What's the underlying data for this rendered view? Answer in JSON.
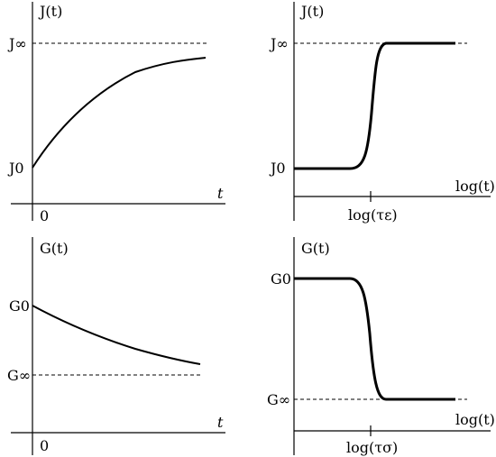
{
  "chart_data": [
    {
      "type": "line",
      "ylabel": "J(t)",
      "xlabel": "t",
      "x_tick_label": "0",
      "y_tick_labels": [
        "J∞",
        "J0"
      ],
      "asymptote_label": "J∞",
      "x": [
        0,
        0.5,
        1,
        1.5,
        2,
        2.5,
        3,
        3.5,
        4,
        4.5,
        5
      ],
      "y": [
        0.0,
        0.26,
        0.45,
        0.6,
        0.7,
        0.78,
        0.84,
        0.88,
        0.91,
        0.93,
        0.95
      ],
      "y_range": "J0 to J∞"
    },
    {
      "type": "line",
      "ylabel": "J(t)",
      "xlabel": "log(t)",
      "x_tick_label": "log(τε)",
      "y_tick_labels": [
        "J∞",
        "J0"
      ],
      "asymptote_label": "J∞",
      "x": [
        -3,
        -2,
        -1,
        -0.5,
        -0.25,
        0,
        0.25,
        0.5,
        1,
        2
      ],
      "y": [
        0.0,
        0.0,
        0.01,
        0.1,
        0.3,
        0.55,
        0.85,
        1.0,
        1.0,
        1.0
      ]
    },
    {
      "type": "line",
      "ylabel": "G(t)",
      "xlabel": "t",
      "x_tick_label": "0",
      "y_tick_labels": [
        "G0",
        "G∞"
      ],
      "asymptote_label": "G∞",
      "x": [
        0,
        0.5,
        1,
        1.5,
        2,
        2.5,
        3,
        3.5,
        4,
        4.5,
        5
      ],
      "y": [
        1.0,
        0.85,
        0.72,
        0.61,
        0.52,
        0.44,
        0.38,
        0.33,
        0.29,
        0.27,
        0.25
      ]
    },
    {
      "type": "line",
      "ylabel": "G(t)",
      "xlabel": "log(t)",
      "x_tick_label": "log(τσ)",
      "y_tick_labels": [
        "G0",
        "G∞"
      ],
      "asymptote_label": "G∞",
      "x": [
        -3,
        -2,
        -1,
        -0.5,
        -0.25,
        0,
        0.25,
        0.5,
        1,
        2
      ],
      "y": [
        1.0,
        1.0,
        0.99,
        0.9,
        0.7,
        0.45,
        0.15,
        0.0,
        0.0,
        0.0
      ]
    }
  ]
}
